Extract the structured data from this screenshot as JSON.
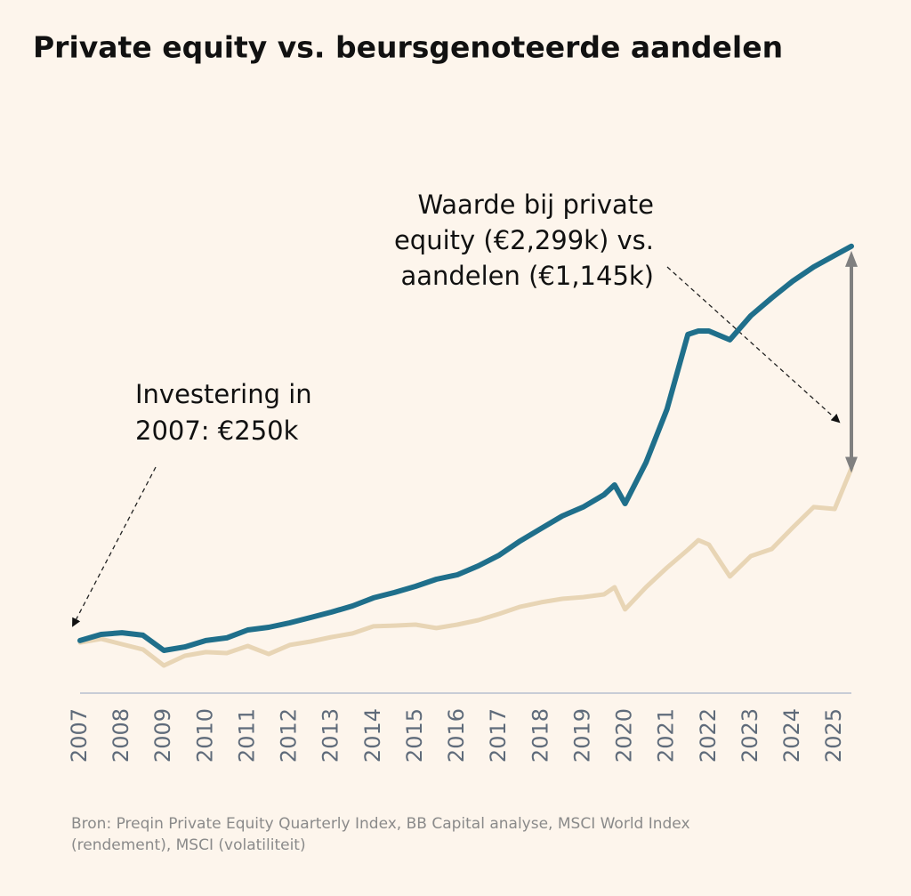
{
  "chart_data": {
    "type": "line",
    "title": "Private equity vs. beursgenoteerde aandelen",
    "x": [
      2007,
      2007.5,
      2008,
      2008.5,
      2009,
      2009.5,
      2010,
      2010.5,
      2011,
      2011.5,
      2012,
      2012.5,
      2013,
      2013.5,
      2014,
      2014.5,
      2015,
      2015.5,
      2016,
      2016.5,
      2017,
      2017.5,
      2018,
      2018.5,
      2019,
      2019.5,
      2019.75,
      2020,
      2020.5,
      2021,
      2021.5,
      2021.75,
      2022,
      2022.5,
      2023,
      2023.5,
      2024,
      2024.5,
      2025,
      2025.4
    ],
    "series": [
      {
        "name": "Private equity",
        "color": "#1f6f8b",
        "values": [
          250,
          282,
          291,
          278,
          199,
          217,
          250,
          264,
          305,
          319,
          342,
          370,
          398,
          430,
          472,
          500,
          532,
          569,
          592,
          638,
          694,
          768,
          833,
          897,
          944,
          1008,
          1059,
          962,
          1175,
          1452,
          1841,
          1859,
          1859,
          1813,
          1938,
          2031,
          2118,
          2192,
          2252,
          2299
        ]
      },
      {
        "name": "Aandelen",
        "color": "#e8d5b5",
        "values": [
          240,
          259,
          231,
          204,
          120,
          171,
          190,
          185,
          222,
          180,
          227,
          245,
          268,
          287,
          324,
          328,
          333,
          315,
          333,
          356,
          389,
          426,
          449,
          467,
          476,
          490,
          527,
          412,
          527,
          629,
          722,
          772,
          749,
          583,
          689,
          726,
          837,
          944,
          934,
          1145
        ]
      }
    ],
    "xlim": [
      2007,
      2025.4
    ],
    "xticks": [
      2007,
      2008,
      2009,
      2010,
      2011,
      2012,
      2013,
      2014,
      2015,
      2016,
      2017,
      2018,
      2019,
      2020,
      2021,
      2022,
      2023,
      2024,
      2025
    ],
    "ylim": [
      0,
      2400
    ],
    "annotations": [
      {
        "lines": [
          "Investering in",
          "2007: €250k"
        ]
      },
      {
        "lines": [
          "Waarde bij private",
          "equity (€2,299k) vs.",
          "aandelen (€1,145k)"
        ]
      }
    ],
    "source": [
      "Bron: Preqin Private Equity Quarterly Index, BB Capital analyse, MSCI World Index",
      "(rendement), MSCI (volatiliteit)"
    ]
  }
}
